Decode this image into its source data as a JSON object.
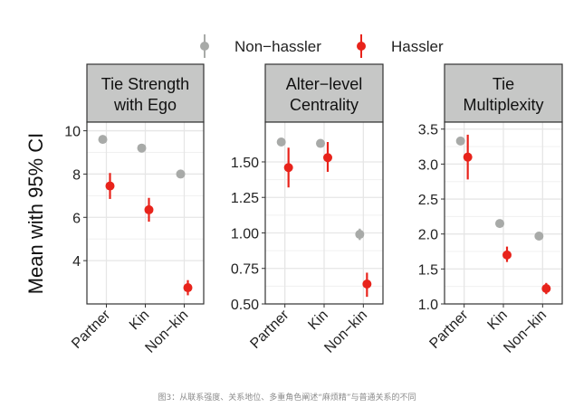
{
  "figure": {
    "ylabel": "Mean with 95% CI",
    "caption": "图3：从联系强度、关系地位、多重角色阐述“麻烦精”与普通关系的不同",
    "legend": {
      "position": "top",
      "items": [
        {
          "label": "Non−hassler",
          "color": "#a8aaa8"
        },
        {
          "label": "Hassler",
          "color": "#e8231b"
        }
      ]
    },
    "colors": {
      "strip_bg": "#c6c7c6",
      "grid": "#e6e6e6",
      "border": "#333333"
    }
  },
  "chart_data": [
    {
      "type": "scatter",
      "title": "Tie Strength with Ego",
      "title_lines": [
        "Tie Strength",
        "with Ego"
      ],
      "categories": [
        "Partner",
        "Kin",
        "Non−kin"
      ],
      "ylim": [
        2.0,
        10.4
      ],
      "yticks": [
        4,
        6,
        8,
        10
      ],
      "ytick_labels": [
        "4",
        "6",
        "8",
        "10"
      ],
      "grid": true,
      "series": [
        {
          "name": "Non−hassler",
          "values": [
            9.6,
            9.2,
            8.0
          ],
          "ci_low": [
            9.5,
            9.1,
            7.9
          ],
          "ci_high": [
            9.7,
            9.3,
            8.1
          ]
        },
        {
          "name": "Hassler",
          "values": [
            7.45,
            6.35,
            2.75
          ],
          "ci_low": [
            6.85,
            5.8,
            2.4
          ],
          "ci_high": [
            8.05,
            6.9,
            3.1
          ]
        }
      ]
    },
    {
      "type": "scatter",
      "title": "Alter−level Centrality",
      "title_lines": [
        "Alter−level",
        "Centrality"
      ],
      "categories": [
        "Partner",
        "Kin",
        "Non−kin"
      ],
      "ylim": [
        0.5,
        1.78
      ],
      "yticks": [
        0.5,
        0.75,
        1.0,
        1.25,
        1.5
      ],
      "ytick_labels": [
        "0.50",
        "0.75",
        "1.00",
        "1.25",
        "1.50"
      ],
      "grid": true,
      "series": [
        {
          "name": "Non−hassler",
          "values": [
            1.64,
            1.63,
            0.99
          ],
          "ci_low": [
            1.62,
            1.61,
            0.95
          ],
          "ci_high": [
            1.66,
            1.65,
            1.03
          ]
        },
        {
          "name": "Hassler",
          "values": [
            1.46,
            1.53,
            0.64
          ],
          "ci_low": [
            1.32,
            1.43,
            0.55
          ],
          "ci_high": [
            1.6,
            1.64,
            0.72
          ]
        }
      ]
    },
    {
      "type": "scatter",
      "title": "Tie Multiplexity",
      "title_lines": [
        "Tie",
        "Multiplexity"
      ],
      "categories": [
        "Partner",
        "Kin",
        "Non−kin"
      ],
      "ylim": [
        1.0,
        3.6
      ],
      "yticks": [
        1.0,
        1.5,
        2.0,
        2.5,
        3.0,
        3.5
      ],
      "ytick_labels": [
        "1.0",
        "1.5",
        "2.0",
        "2.5",
        "3.0",
        "3.5"
      ],
      "grid": true,
      "series": [
        {
          "name": "Non−hassler",
          "values": [
            3.33,
            2.15,
            1.97
          ],
          "ci_low": [
            3.29,
            2.12,
            1.94
          ],
          "ci_high": [
            3.37,
            2.18,
            2.0
          ]
        },
        {
          "name": "Hassler",
          "values": [
            3.1,
            1.7,
            1.22
          ],
          "ci_low": [
            2.78,
            1.6,
            1.14
          ],
          "ci_high": [
            3.42,
            1.82,
            1.3
          ]
        }
      ]
    }
  ]
}
